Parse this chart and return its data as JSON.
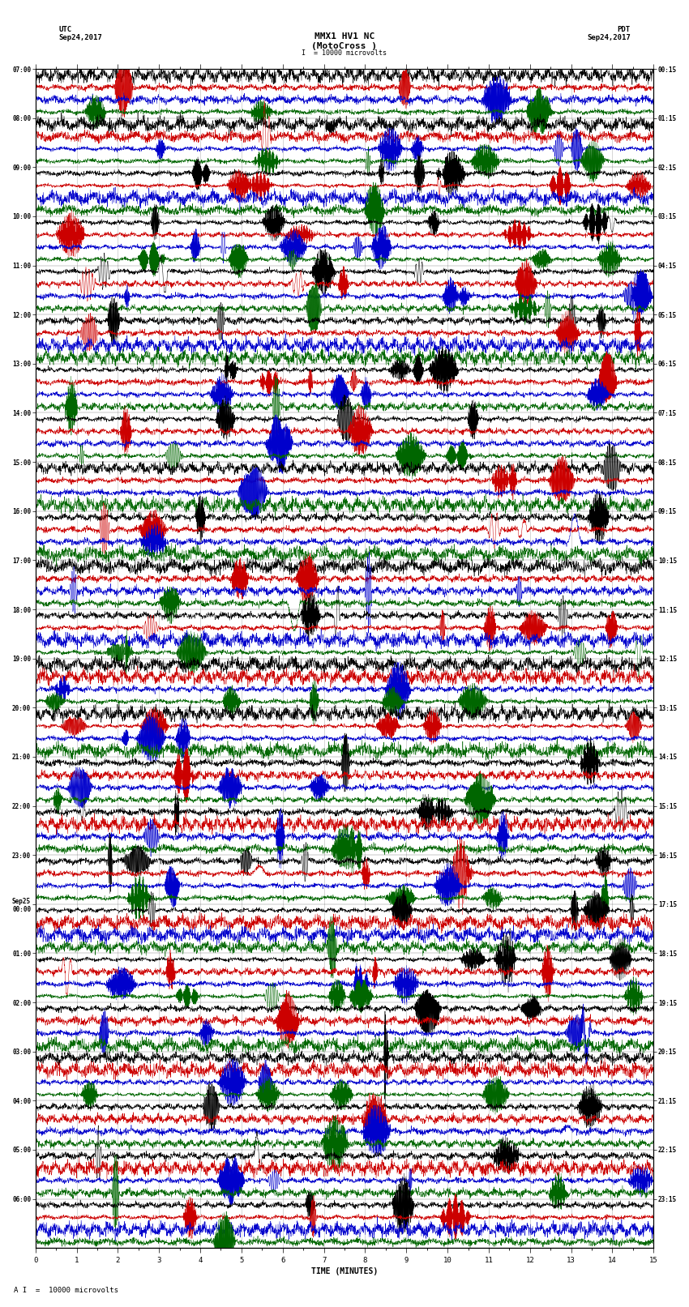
{
  "title_line1": "MMX1 HV1 NC",
  "title_line2": "(MotoCross )",
  "scale_label": "= 10000 microvolts",
  "left_label_line1": "UTC",
  "left_label_line2": "Sep24,2017",
  "right_label_line1": "PDT",
  "right_label_line2": "Sep24,2017",
  "xlabel": "TIME (MINUTES)",
  "bottom_note": "10000 microvolts",
  "bg_color": "#ffffff",
  "trace_colors": [
    "#000000",
    "#cc0000",
    "#0000cc",
    "#006600"
  ],
  "utc_times_labeled": [
    "07:00",
    "08:00",
    "09:00",
    "10:00",
    "11:00",
    "12:00",
    "13:00",
    "14:00",
    "15:00",
    "16:00",
    "17:00",
    "18:00",
    "19:00",
    "20:00",
    "21:00",
    "22:00",
    "23:00",
    "Sep25\n00:00",
    "01:00",
    "02:00",
    "03:00",
    "04:00",
    "05:00",
    "06:00"
  ],
  "pdt_times_labeled": [
    "00:15",
    "01:15",
    "02:15",
    "03:15",
    "04:15",
    "05:15",
    "06:15",
    "07:15",
    "08:15",
    "09:15",
    "10:15",
    "11:15",
    "12:15",
    "13:15",
    "14:15",
    "15:15",
    "16:15",
    "17:15",
    "18:15",
    "19:15",
    "20:15",
    "21:15",
    "22:15",
    "23:15"
  ],
  "n_hour_blocks": 24,
  "traces_per_block": 4,
  "x_min": 0,
  "x_max": 15,
  "random_seed": 42,
  "grid_color": "#888888",
  "tick_color": "#000000"
}
